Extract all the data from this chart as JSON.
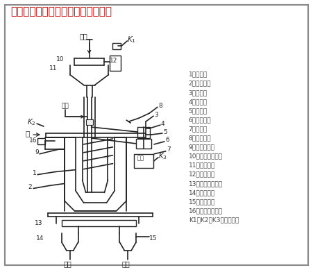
{
  "title": "昆明矿机系列离心选矿机结构示意图",
  "title_color": "#cc0000",
  "bg_color": "#ffffff",
  "border_color": "#666666",
  "line_color": "#222222",
  "legend_items": [
    "1：转鼓；",
    "2：防护罩；",
    "3：底盘；",
    "4：主轴；",
    "5：轴承；",
    "6：皮带轮；",
    "7：电机；",
    "8：给矿嘴；",
    "9：冲洗水嘴；",
    "10：给矿分配器；",
    "11：给矿槽；",
    "12：日接槽；",
    "13：排矿分配器；",
    "14：尾矿槽；",
    "15：精矿槽；",
    "16：高压水阀门；",
    "K1，K2，K3：控制机构"
  ],
  "fig_width": 4.51,
  "fig_height": 3.89,
  "dpi": 100
}
